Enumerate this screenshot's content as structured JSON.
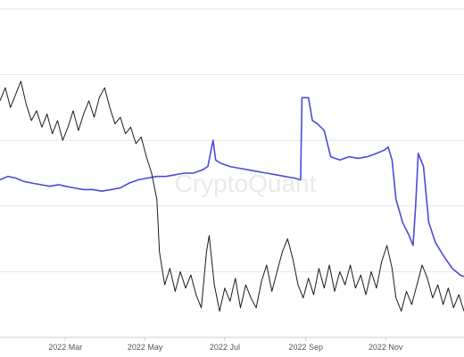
{
  "watermark": "CryptoQuant",
  "chart_data": {
    "type": "line",
    "title": "",
    "xlabel": "",
    "ylabel": "",
    "x_tick_labels": [
      "2022 Mar",
      "2022 May",
      "2022 Jul",
      "2022 Sep",
      "2022 Nov"
    ],
    "x_tick_dates": [
      "2022-03-01",
      "2022-05-01",
      "2022-07-01",
      "2022-09-01",
      "2022-11-01"
    ],
    "xlim": [
      "2022-01-10",
      "2022-12-31"
    ],
    "ylim": [
      0,
      10
    ],
    "grid": true,
    "y_tick_labels_shown": false,
    "series": [
      {
        "color": "#4b4bd8",
        "points": [
          [
            "2022-01-10",
            4.8
          ],
          [
            "2022-01-16",
            4.9
          ],
          [
            "2022-01-22",
            4.85
          ],
          [
            "2022-01-28",
            4.75
          ],
          [
            "2022-02-03",
            4.7
          ],
          [
            "2022-02-10",
            4.65
          ],
          [
            "2022-02-17",
            4.6
          ],
          [
            "2022-02-24",
            4.65
          ],
          [
            "2022-03-01",
            4.6
          ],
          [
            "2022-03-08",
            4.55
          ],
          [
            "2022-03-15",
            4.5
          ],
          [
            "2022-03-22",
            4.5
          ],
          [
            "2022-03-29",
            4.45
          ],
          [
            "2022-04-05",
            4.5
          ],
          [
            "2022-04-12",
            4.55
          ],
          [
            "2022-04-19",
            4.7
          ],
          [
            "2022-04-26",
            4.8
          ],
          [
            "2022-05-03",
            4.85
          ],
          [
            "2022-05-10",
            4.9
          ],
          [
            "2022-05-17",
            4.9
          ],
          [
            "2022-05-24",
            4.95
          ],
          [
            "2022-05-31",
            5.0
          ],
          [
            "2022-06-07",
            5.0
          ],
          [
            "2022-06-14",
            5.1
          ],
          [
            "2022-06-18",
            5.2
          ],
          [
            "2022-06-22",
            6.0
          ],
          [
            "2022-06-24",
            5.4
          ],
          [
            "2022-06-28",
            5.3
          ],
          [
            "2022-07-05",
            5.2
          ],
          [
            "2022-07-12",
            5.15
          ],
          [
            "2022-07-19",
            5.1
          ],
          [
            "2022-07-26",
            5.05
          ],
          [
            "2022-08-02",
            5.0
          ],
          [
            "2022-08-09",
            4.95
          ],
          [
            "2022-08-16",
            4.9
          ],
          [
            "2022-08-23",
            4.85
          ],
          [
            "2022-08-28",
            4.8
          ],
          [
            "2022-08-29",
            7.3
          ],
          [
            "2022-09-03",
            7.3
          ],
          [
            "2022-09-06",
            6.6
          ],
          [
            "2022-09-10",
            6.5
          ],
          [
            "2022-09-15",
            6.3
          ],
          [
            "2022-09-20",
            5.5
          ],
          [
            "2022-09-27",
            5.4
          ],
          [
            "2022-10-04",
            5.5
          ],
          [
            "2022-10-11",
            5.45
          ],
          [
            "2022-10-18",
            5.5
          ],
          [
            "2022-10-25",
            5.6
          ],
          [
            "2022-10-31",
            5.7
          ],
          [
            "2022-11-03",
            5.8
          ],
          [
            "2022-11-06",
            5.4
          ],
          [
            "2022-11-09",
            4.2
          ],
          [
            "2022-11-14",
            3.5
          ],
          [
            "2022-11-19",
            3.1
          ],
          [
            "2022-11-22",
            2.8
          ],
          [
            "2022-11-24",
            4.0
          ],
          [
            "2022-11-26",
            5.6
          ],
          [
            "2022-11-30",
            5.2
          ],
          [
            "2022-12-04",
            3.5
          ],
          [
            "2022-12-09",
            2.9
          ],
          [
            "2022-12-15",
            2.5
          ],
          [
            "2022-12-22",
            2.1
          ],
          [
            "2022-12-28",
            1.9
          ],
          [
            "2022-12-31",
            1.85
          ]
        ]
      },
      {
        "color": "#1a1a1a",
        "points": [
          [
            "2022-01-10",
            7.2
          ],
          [
            "2022-01-14",
            7.6
          ],
          [
            "2022-01-18",
            7.0
          ],
          [
            "2022-01-22",
            7.4
          ],
          [
            "2022-01-26",
            7.8
          ],
          [
            "2022-01-30",
            7.1
          ],
          [
            "2022-02-03",
            6.6
          ],
          [
            "2022-02-07",
            6.9
          ],
          [
            "2022-02-11",
            6.4
          ],
          [
            "2022-02-15",
            6.8
          ],
          [
            "2022-02-19",
            6.2
          ],
          [
            "2022-02-23",
            6.6
          ],
          [
            "2022-02-27",
            6.0
          ],
          [
            "2022-03-03",
            6.4
          ],
          [
            "2022-03-07",
            6.9
          ],
          [
            "2022-03-11",
            6.3
          ],
          [
            "2022-03-15",
            6.8
          ],
          [
            "2022-03-19",
            7.2
          ],
          [
            "2022-03-23",
            6.7
          ],
          [
            "2022-03-27",
            7.3
          ],
          [
            "2022-03-31",
            7.6
          ],
          [
            "2022-04-04",
            7.0
          ],
          [
            "2022-04-08",
            6.5
          ],
          [
            "2022-04-12",
            6.7
          ],
          [
            "2022-04-16",
            6.2
          ],
          [
            "2022-04-20",
            6.4
          ],
          [
            "2022-04-24",
            5.9
          ],
          [
            "2022-04-28",
            6.1
          ],
          [
            "2022-05-02",
            5.5
          ],
          [
            "2022-05-06",
            5.0
          ],
          [
            "2022-05-10",
            4.2
          ],
          [
            "2022-05-12",
            2.6
          ],
          [
            "2022-05-16",
            1.6
          ],
          [
            "2022-05-20",
            2.1
          ],
          [
            "2022-05-24",
            1.4
          ],
          [
            "2022-05-28",
            2.0
          ],
          [
            "2022-06-01",
            1.5
          ],
          [
            "2022-06-05",
            1.9
          ],
          [
            "2022-06-09",
            1.3
          ],
          [
            "2022-06-13",
            0.9
          ],
          [
            "2022-06-17",
            2.6
          ],
          [
            "2022-06-19",
            3.1
          ],
          [
            "2022-06-23",
            1.6
          ],
          [
            "2022-06-27",
            0.8
          ],
          [
            "2022-07-01",
            1.5
          ],
          [
            "2022-07-05",
            1.1
          ],
          [
            "2022-07-09",
            1.8
          ],
          [
            "2022-07-13",
            0.9
          ],
          [
            "2022-07-17",
            1.6
          ],
          [
            "2022-07-21",
            1.2
          ],
          [
            "2022-07-25",
            0.9
          ],
          [
            "2022-07-29",
            1.7
          ],
          [
            "2022-08-02",
            2.2
          ],
          [
            "2022-08-06",
            1.4
          ],
          [
            "2022-08-10",
            2.0
          ],
          [
            "2022-08-14",
            2.6
          ],
          [
            "2022-08-18",
            3.0
          ],
          [
            "2022-08-22",
            2.4
          ],
          [
            "2022-08-26",
            1.6
          ],
          [
            "2022-08-30",
            1.2
          ],
          [
            "2022-09-03",
            1.8
          ],
          [
            "2022-09-07",
            1.3
          ],
          [
            "2022-09-11",
            2.1
          ],
          [
            "2022-09-15",
            1.5
          ],
          [
            "2022-09-19",
            2.2
          ],
          [
            "2022-09-23",
            1.4
          ],
          [
            "2022-09-27",
            2.0
          ],
          [
            "2022-10-01",
            1.6
          ],
          [
            "2022-10-05",
            2.2
          ],
          [
            "2022-10-09",
            1.5
          ],
          [
            "2022-10-13",
            1.9
          ],
          [
            "2022-10-17",
            1.3
          ],
          [
            "2022-10-21",
            2.0
          ],
          [
            "2022-10-25",
            1.5
          ],
          [
            "2022-10-29",
            2.3
          ],
          [
            "2022-11-02",
            2.8
          ],
          [
            "2022-11-06",
            2.1
          ],
          [
            "2022-11-09",
            1.2
          ],
          [
            "2022-11-13",
            0.8
          ],
          [
            "2022-11-17",
            1.4
          ],
          [
            "2022-11-21",
            1.0
          ],
          [
            "2022-11-25",
            1.6
          ],
          [
            "2022-11-29",
            2.2
          ],
          [
            "2022-12-03",
            1.8
          ],
          [
            "2022-12-07",
            1.2
          ],
          [
            "2022-12-11",
            1.6
          ],
          [
            "2022-12-15",
            1.0
          ],
          [
            "2022-12-19",
            1.5
          ],
          [
            "2022-12-23",
            0.9
          ],
          [
            "2022-12-27",
            1.3
          ],
          [
            "2022-12-31",
            0.8
          ]
        ]
      }
    ]
  }
}
